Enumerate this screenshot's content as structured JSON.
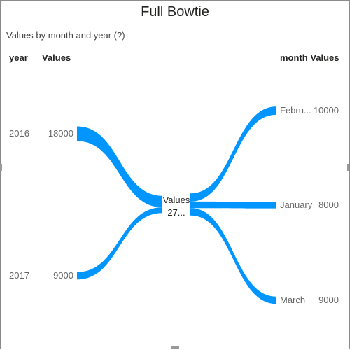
{
  "chart_data": {
    "type": "bowtie",
    "title": "Full Bowtie",
    "subtitle": "Values by month and year (?)",
    "left": {
      "category_header": "year",
      "value_header": "Values",
      "items": [
        {
          "label": "2016",
          "value": 18000
        },
        {
          "label": "2017",
          "value": 9000
        }
      ]
    },
    "right": {
      "header": "month Values",
      "items": [
        {
          "label": "Febru...",
          "value": 10000
        },
        {
          "label": "January",
          "value": 8000
        },
        {
          "label": "March",
          "value": 9000
        }
      ]
    },
    "center": {
      "label": "Values",
      "value_text": "27..."
    },
    "colors": {
      "flow": "#0095ff"
    }
  }
}
